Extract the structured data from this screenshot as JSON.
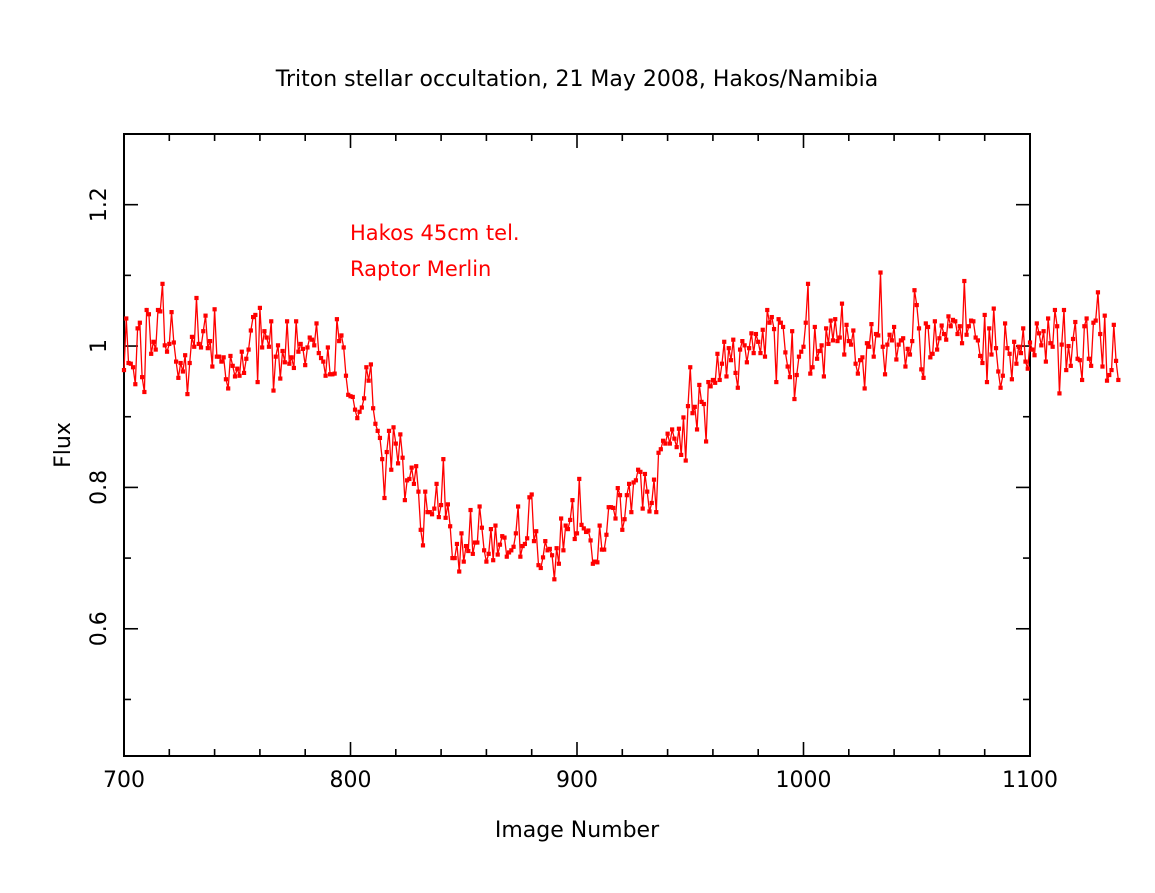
{
  "chart_data": {
    "type": "line",
    "title": "Triton stellar occultation, 21 May 2008, Hakos/Namibia",
    "xlabel": "Image Number",
    "ylabel": "Flux",
    "xlim": [
      700,
      1100
    ],
    "ylim": [
      0.42,
      1.3
    ],
    "x_ticks": [
      700,
      800,
      900,
      1000,
      1100
    ],
    "x_tick_labels": [
      "700",
      "800",
      "900",
      "1000",
      "1100"
    ],
    "x_minor_step": 20,
    "y_ticks": [
      0.6,
      0.8,
      1.0,
      1.2
    ],
    "y_tick_labels": [
      "0.6",
      "0.8",
      "1",
      "1.2"
    ],
    "y_minor_step": 0.1,
    "grid": false,
    "color": "#ff0000",
    "marker": "square",
    "annotations": [
      "Hakos 45cm tel.",
      "Raptor Merlin"
    ],
    "series": [
      {
        "x_start": 700,
        "x_step": 1,
        "y": [
          0.966,
          1.039,
          0.976,
          0.975,
          0.97,
          0.946,
          1.025,
          1.033,
          0.956,
          0.935,
          1.051,
          1.045,
          0.989,
          1.006,
          0.995,
          1.051,
          1.049,
          1.088,
          1.001,
          0.992,
          1.003,
          1.048,
          1.005,
          0.978,
          0.955,
          0.976,
          0.964,
          0.987,
          0.932,
          0.976,
          1.013,
          0.999,
          1.068,
          1.003,
          0.998,
          1.021,
          1.043,
          0.997,
          1.007,
          0.971,
          1.052,
          0.985,
          0.985,
          0.978,
          0.984,
          0.953,
          0.94,
          0.986,
          0.972,
          0.957,
          0.968,
          0.958,
          0.992,
          0.962,
          0.982,
          0.995,
          1.022,
          1.041,
          1.044,
          0.949,
          1.054,
          0.998,
          1.021,
          1.012,
          0.999,
          1.035,
          0.937,
          0.985,
          1.001,
          0.954,
          0.993,
          0.977,
          1.035,
          0.975,
          0.984,
          0.969,
          1.035,
          0.992,
          1.003,
          0.996,
          0.973,
          0.998,
          1.012,
          1.009,
          1.001,
          1.032,
          0.99,
          0.983,
          0.978,
          0.958,
          0.998,
          0.96,
          0.96,
          0.961,
          1.038,
          1.007,
          1.015,
          0.998,
          0.958,
          0.931,
          0.929,
          0.928,
          0.91,
          0.898,
          0.907,
          0.913,
          0.926,
          0.97,
          0.951,
          0.974,
          0.912,
          0.89,
          0.88,
          0.87,
          0.84,
          0.785,
          0.85,
          0.88,
          0.825,
          0.885,
          0.862,
          0.834,
          0.875,
          0.842,
          0.782,
          0.81,
          0.812,
          0.828,
          0.805,
          0.83,
          0.794,
          0.74,
          0.718,
          0.794,
          0.765,
          0.765,
          0.762,
          0.77,
          0.805,
          0.758,
          0.775,
          0.84,
          0.757,
          0.776,
          0.745,
          0.7,
          0.7,
          0.72,
          0.681,
          0.735,
          0.695,
          0.717,
          0.71,
          0.768,
          0.706,
          0.722,
          0.722,
          0.773,
          0.743,
          0.711,
          0.695,
          0.706,
          0.741,
          0.697,
          0.746,
          0.705,
          0.719,
          0.731,
          0.729,
          0.702,
          0.708,
          0.711,
          0.716,
          0.735,
          0.773,
          0.702,
          0.717,
          0.72,
          0.728,
          0.786,
          0.79,
          0.724,
          0.738,
          0.69,
          0.686,
          0.701,
          0.724,
          0.711,
          0.713,
          0.704,
          0.67,
          0.714,
          0.692,
          0.756,
          0.711,
          0.746,
          0.741,
          0.754,
          0.782,
          0.727,
          0.735,
          0.812,
          0.747,
          0.742,
          0.737,
          0.739,
          0.725,
          0.692,
          0.695,
          0.694,
          0.746,
          0.712,
          0.712,
          0.733,
          0.772,
          0.772,
          0.771,
          0.756,
          0.799,
          0.789,
          0.74,
          0.755,
          0.789,
          0.805,
          0.765,
          0.807,
          0.81,
          0.825,
          0.822,
          0.77,
          0.819,
          0.794,
          0.766,
          0.778,
          0.811,
          0.765,
          0.849,
          0.854,
          0.866,
          0.862,
          0.876,
          0.862,
          0.882,
          0.869,
          0.857,
          0.883,
          0.846,
          0.899,
          0.838,
          0.915,
          0.97,
          0.905,
          0.914,
          0.882,
          0.945,
          0.921,
          0.918,
          0.865,
          0.949,
          0.943,
          0.952,
          0.948,
          0.989,
          0.952,
          0.975,
          1.006,
          0.957,
          0.997,
          0.98,
          1.009,
          0.962,
          0.941,
          0.995,
          1.007,
          1.001,
          0.977,
          0.997,
          1.018,
          0.99,
          1.017,
          1.006,
          0.99,
          1.023,
          0.985,
          1.051,
          1.033,
          1.041,
          1.024,
          0.949,
          1.038,
          1.033,
          1.027,
          0.991,
          0.971,
          0.956,
          1.021,
          0.925,
          0.959,
          0.985,
          0.992,
          0.999,
          1.033,
          1.088,
          0.961,
          0.97,
          1.027,
          0.982,
          0.993,
          1.001,
          0.957,
          1.025,
          1.003,
          1.036,
          1.008,
          1.038,
          1.007,
          1.012,
          1.06,
          0.988,
          1.03,
          1.007,
          1.002,
          1.022,
          0.975,
          0.961,
          0.98,
          0.984,
          0.94,
          1.004,
          0.999,
          1.031,
          0.985,
          1.017,
          1.015,
          1.104,
          0.999,
          0.96,
          1.002,
          1.016,
          1.008,
          1.027,
          0.981,
          1.002,
          1.008,
          1.011,
          0.971,
          0.996,
          0.988,
          1.007,
          1.079,
          1.058,
          1.025,
          0.967,
          0.955,
          1.032,
          1.027,
          0.984,
          0.989,
          1.035,
          0.995,
          1.011,
          1.029,
          1.017,
          1.009,
          1.042,
          1.028,
          1.037,
          1.035,
          1.017,
          1.028,
          1.004,
          1.092,
          1.016,
          1.028,
          1.036,
          1.035,
          1.012,
          1.008,
          0.986,
          0.976,
          1.044,
          0.949,
          1.025,
          0.988,
          1.053,
          0.997,
          0.964,
          0.941,
          0.958,
          1.032,
          0.997,
          0.989,
          0.953,
          1.006,
          0.975,
          0.999,
          0.99,
          1.025,
          0.978,
          0.968,
          1.005,
          0.995,
          0.987,
          1.032,
          1.018,
          1.001,
          1.021,
          0.978,
          1.039,
          1.004,
          0.999,
          1.051,
          1.028,
          0.933,
          1.002,
          1.051,
          0.966,
          1.0,
          0.972,
          1.01,
          1.034,
          0.982,
          0.98,
          0.952,
          1.028,
          1.039,
          0.982,
          0.972,
          1.033,
          1.036,
          1.076,
          1.017,
          0.971,
          1.043,
          0.951,
          0.959,
          0.966,
          1.03,
          0.979,
          0.952
        ]
      }
    ]
  }
}
